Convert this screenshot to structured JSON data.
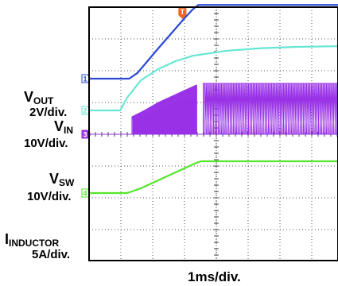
{
  "chart_data": {
    "type": "line",
    "title": "",
    "xlabel": "1ms/div.",
    "x_unit": "ms",
    "x_divisions": 10,
    "xlim": [
      0,
      3.6
    ],
    "grid": true,
    "trigger_marker": {
      "label": "T",
      "x": 1.35,
      "color": "#f26522"
    },
    "channels": [
      {
        "id": "ch1",
        "marker": "1",
        "name": "VOUT",
        "name_main": "V",
        "name_sub": "OUT",
        "scale": "2V/div.",
        "color": "#2a48d4",
        "baseline_div": 1.75,
        "points": [
          [
            0,
            0
          ],
          [
            0.58,
            0
          ],
          [
            0.7,
            0.18
          ],
          [
            1.0,
            0.95
          ],
          [
            1.2,
            1.45
          ],
          [
            1.4,
            1.95
          ],
          [
            1.5,
            2.18
          ],
          [
            1.58,
            2.32
          ],
          [
            3.6,
            2.32
          ]
        ]
      },
      {
        "id": "ch2",
        "marker": "2",
        "name": "VIN",
        "name_main": "V",
        "name_sub": "IN",
        "scale": "10V/div.",
        "color": "#66e6d4",
        "baseline_div": 0.75,
        "points": [
          [
            0,
            0
          ],
          [
            0.45,
            0
          ],
          [
            0.55,
            0.4
          ],
          [
            0.75,
            0.95
          ],
          [
            1.0,
            1.3
          ],
          [
            1.25,
            1.55
          ],
          [
            1.5,
            1.72
          ],
          [
            2.0,
            1.88
          ],
          [
            2.5,
            1.96
          ],
          [
            3.0,
            2.0
          ],
          [
            3.6,
            2.02
          ]
        ]
      },
      {
        "id": "ch3",
        "marker": "3",
        "name": "VSW",
        "name_main": "V",
        "name_sub": "SW",
        "scale": "10V/div.",
        "color": "#9932e6",
        "baseline_div": 0.0,
        "envelope": [
          [
            0.62,
            0.55
          ],
          [
            0.8,
            0.75
          ],
          [
            1.0,
            1.0
          ],
          [
            1.2,
            1.2
          ],
          [
            1.4,
            1.4
          ],
          [
            1.55,
            1.55
          ]
        ],
        "burst_end": 1.55,
        "steady_start": 1.65,
        "steady_amplitude": 1.6
      },
      {
        "id": "ch4",
        "marker": "4",
        "name": "IINDUCTOR",
        "name_main": "I",
        "name_sub": "INDUCTOR",
        "scale": "5A/div.",
        "color": "#55e62a",
        "baseline_div": -1.85,
        "points": [
          [
            0,
            0
          ],
          [
            0.55,
            0
          ],
          [
            0.75,
            0.15
          ],
          [
            1.0,
            0.4
          ],
          [
            1.25,
            0.65
          ],
          [
            1.45,
            0.85
          ],
          [
            1.55,
            0.95
          ],
          [
            1.62,
            1.0
          ],
          [
            3.6,
            1.0
          ]
        ]
      }
    ]
  }
}
